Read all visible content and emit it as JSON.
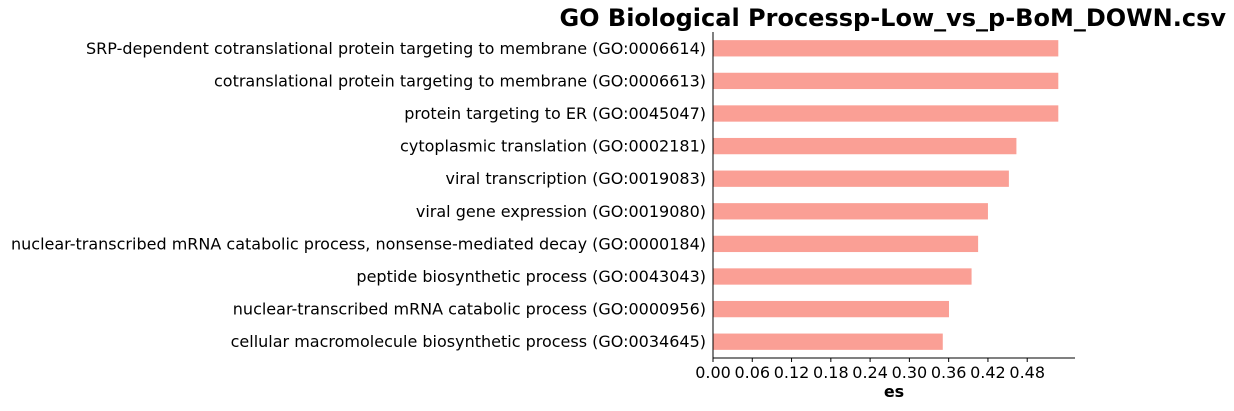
{
  "chart_data": {
    "type": "bar",
    "orientation": "horizontal",
    "title": "GO Biological Processp-Low_vs_p-BoM_DOWN.csv",
    "xlabel": "es",
    "ylabel": "",
    "categories": [
      "SRP-dependent cotranslational protein targeting to membrane (GO:0006614)",
      "cotranslational protein targeting to membrane (GO:0006613)",
      "protein targeting to ER (GO:0045047)",
      "cytoplasmic translation (GO:0002181)",
      "viral transcription (GO:0019083)",
      "viral gene expression (GO:0019080)",
      "nuclear-transcribed mRNA catabolic process, nonsense-mediated decay (GO:0000184)",
      "peptide biosynthetic process (GO:0043043)",
      "nuclear-transcribed mRNA catabolic process (GO:0000956)",
      "cellular macromolecule biosynthetic process (GO:0034645)"
    ],
    "values": [
      0.5275,
      0.5275,
      0.5275,
      0.4635,
      0.452,
      0.42,
      0.405,
      0.395,
      0.3605,
      0.351
    ],
    "xlim": [
      0,
      0.553
    ],
    "xticks": [
      0.0,
      0.06,
      0.12,
      0.18,
      0.24,
      0.3,
      0.36,
      0.42,
      0.48
    ],
    "xtick_labels": [
      "0.00",
      "0.06",
      "0.12",
      "0.18",
      "0.24",
      "0.30",
      "0.36",
      "0.42",
      "0.48"
    ],
    "bar_color": "#fa9f95",
    "grid": false,
    "legend": "none"
  }
}
